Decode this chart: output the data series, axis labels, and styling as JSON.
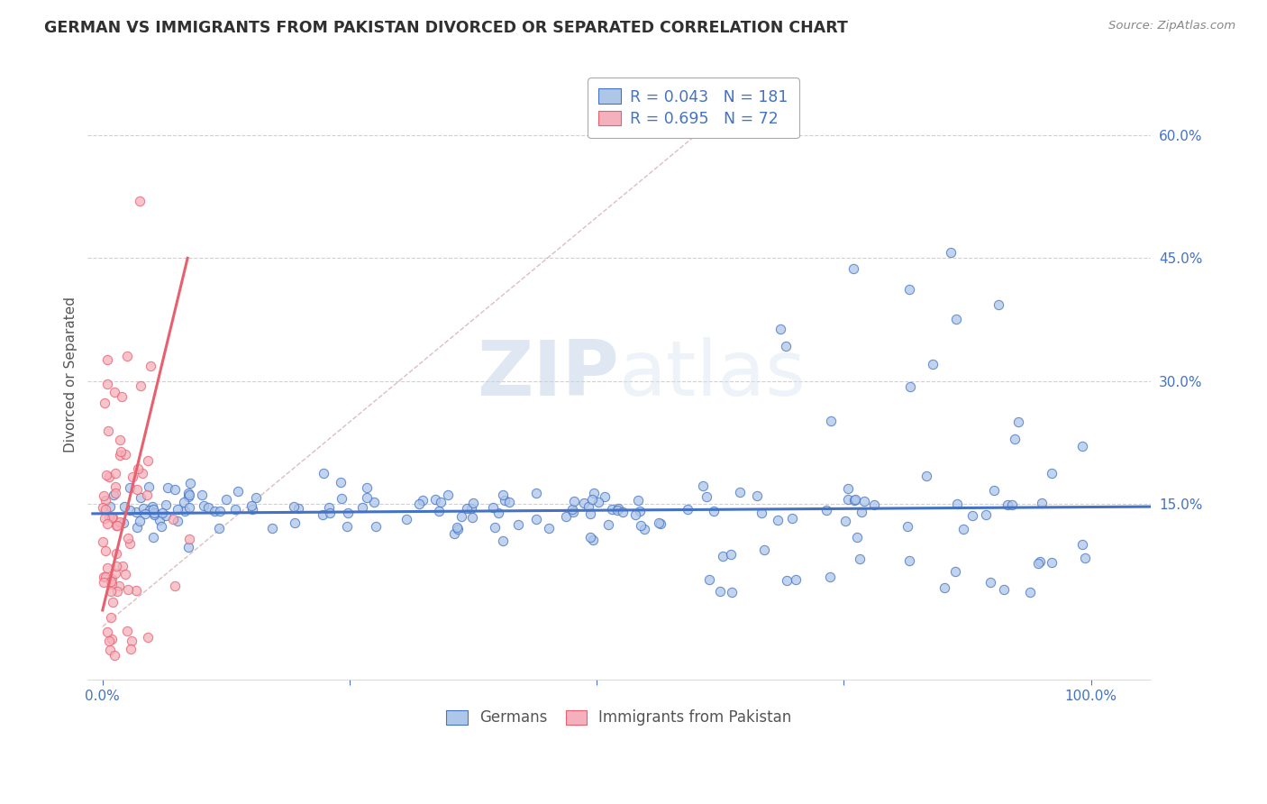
{
  "title": "GERMAN VS IMMIGRANTS FROM PAKISTAN DIVORCED OR SEPARATED CORRELATION CHART",
  "source_text": "Source: ZipAtlas.com",
  "watermark_zip": "ZIP",
  "watermark_atlas": "atlas",
  "ylabel": "Divorced or Separated",
  "right_yticklabels": [
    "15.0%",
    "30.0%",
    "45.0%",
    "60.0%"
  ],
  "right_ytick_vals": [
    0.15,
    0.3,
    0.45,
    0.6
  ],
  "xticklabels": [
    "0.0%",
    "100.0%"
  ],
  "xtick_vals": [
    0.0,
    1.0
  ],
  "xlim": [
    -0.015,
    1.06
  ],
  "ylim": [
    -0.065,
    0.68
  ],
  "legend_entries": [
    {
      "label": "R = 0.043   N = 181",
      "color": "#aec6e8"
    },
    {
      "label": "R = 0.695   N = 72",
      "color": "#f4b0bc"
    }
  ],
  "blue_color": "#4472c4",
  "pink_color": "#e8606d",
  "blue_fill": "#aec6e8",
  "pink_fill": "#f4b0bc",
  "regression_blue_slope": 0.008,
  "regression_blue_intercept": 0.138,
  "regression_pink_slope": 5.2,
  "regression_pink_intercept": 0.03,
  "ref_line_color": "#e0b8c0",
  "grid_color": "#d0d0d0",
  "title_color": "#303030",
  "axis_label_color": "#4472c4",
  "tick_color": "#4472c4",
  "background_color": "#ffffff"
}
